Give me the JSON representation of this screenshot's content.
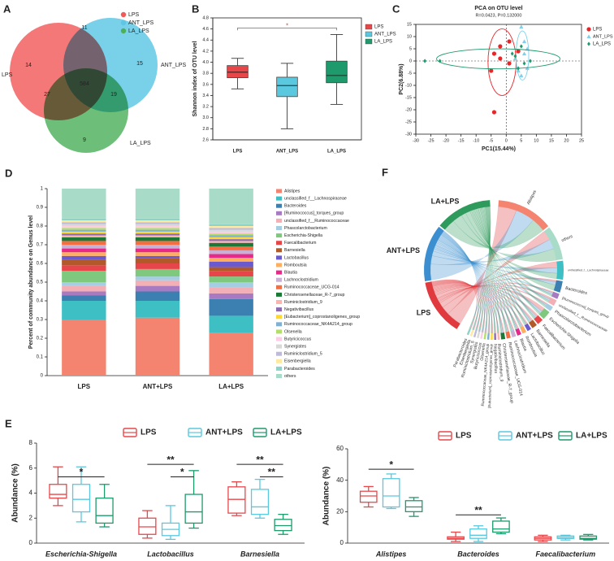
{
  "chart_data": [
    {
      "type": "venn",
      "panel": "A",
      "sets": [
        {
          "name": "LPS",
          "color": "#f25a5a"
        },
        {
          "name": "ANT_LPS",
          "color": "#5cc6e4"
        },
        {
          "name": "LA_LPS",
          "color": "#4cb05a"
        }
      ],
      "regions": [
        {
          "sets": [
            0
          ],
          "value": 14
        },
        {
          "sets": [
            1
          ],
          "value": 15
        },
        {
          "sets": [
            0,
            1
          ],
          "value": 11
        },
        {
          "sets": [
            0,
            1,
            2
          ],
          "value": 584
        },
        {
          "sets": [
            0,
            2
          ],
          "value": 27
        },
        {
          "sets": [
            1,
            2
          ],
          "value": 19
        },
        {
          "sets": [
            2
          ],
          "value": 9
        }
      ]
    },
    {
      "type": "box",
      "panel": "B",
      "ylabel": "Shannon index of OTU level",
      "filled": true,
      "categories": [
        "LPS",
        "ANT_LPS",
        "LA_LPS"
      ],
      "colors": [
        "#e8474a",
        "#5ac8de",
        "#1e9a6c"
      ],
      "boxes": [
        {
          "min": 3.52,
          "q1": 3.72,
          "median": 3.82,
          "q3": 3.94,
          "max": 4.07
        },
        {
          "min": 2.8,
          "q1": 3.38,
          "median": 3.58,
          "q3": 3.73,
          "max": 3.98
        },
        {
          "min": 3.24,
          "q1": 3.63,
          "median": 3.76,
          "q3": 4.02,
          "max": 4.5
        }
      ],
      "ylim": [
        2.6,
        4.8
      ],
      "yticks": [
        2.6,
        2.8,
        {
          "value": 3,
          "label": "3.0"
        },
        3.2,
        3.4,
        3.6,
        3.8,
        {
          "value": 4,
          "label": "4.0"
        },
        4.2,
        4.4,
        4.6,
        4.8
      ],
      "annotations": [
        {
          "label": "*",
          "y": 4.62,
          "between": [
            0,
            2
          ]
        }
      ]
    },
    {
      "type": "scatter",
      "panel": "C",
      "title": "PCA on OTU level",
      "subtitle": "R=0.0423, P=0.132000",
      "xlabel": "PC1(15.44%)",
      "ylabel": "PC2(6.88%)",
      "xlim": [
        -30,
        25
      ],
      "xticks": [
        -30,
        -25,
        -20,
        -15,
        -10,
        -5,
        0,
        5,
        10,
        15,
        20,
        25
      ],
      "ylim": [
        -30,
        15
      ],
      "yticks": [
        -30,
        -25,
        -20,
        -15,
        -10,
        -5,
        0,
        5,
        10,
        15
      ],
      "series": [
        {
          "name": "LPS",
          "color": "#e8262a",
          "marker": "circle",
          "x": [
            -4,
            -2,
            1,
            -2,
            -5,
            -4,
            4,
            1
          ],
          "y": [
            3,
            6,
            8,
            1,
            -4,
            -21,
            4,
            -1
          ]
        },
        {
          "name": "ANT_LPS",
          "color": "#7fd0e8",
          "marker": "triangle",
          "x": [
            5,
            6,
            7,
            4,
            5,
            7,
            3,
            6
          ],
          "y": [
            14,
            3,
            5,
            -4,
            -6,
            -3,
            1,
            8
          ]
        },
        {
          "name": "LA_LPS",
          "color": "#1e9a6c",
          "marker": "diamond",
          "x": [
            -27,
            -22,
            3,
            5,
            6,
            8,
            4,
            2
          ],
          "y": [
            0,
            0,
            2,
            6,
            -1,
            0,
            -3,
            3
          ]
        }
      ]
    },
    {
      "type": "stacked_bar",
      "panel": "D",
      "ylabel": "Percent of community abundance on Genus level",
      "categories": [
        "LPS",
        "ANT+LPS",
        "LA+LPS"
      ],
      "ylim": [
        0,
        1
      ],
      "yticks": [
        0,
        0.1,
        0.2,
        0.3,
        0.4,
        0.5,
        0.6,
        0.7,
        0.8,
        0.9,
        1
      ],
      "series": [
        {
          "name": "Alistipes",
          "color": "#f4846f",
          "values": [
            0.3,
            0.31,
            0.23
          ]
        },
        {
          "name": "unclassified_f__Lachnospiraceae",
          "color": "#3ebfc4",
          "values": [
            0.1,
            0.09,
            0.09
          ]
        },
        {
          "name": "Bacteroides",
          "color": "#3c7fb1",
          "values": [
            0.03,
            0.05,
            0.09
          ]
        },
        {
          "name": "[Ruminococcus]_torques_group",
          "color": "#a77ac1",
          "values": [
            0.02,
            0.03,
            0.03
          ]
        },
        {
          "name": "unclassified_f__Ruminococcaceae",
          "color": "#f2b0b6",
          "values": [
            0.03,
            0.03,
            0.03
          ]
        },
        {
          "name": "Phascolarctobacterium",
          "color": "#a6cee3",
          "values": [
            0.02,
            0.02,
            0.03
          ]
        },
        {
          "name": "Escherichia-Shigella",
          "color": "#7fc97f",
          "values": [
            0.06,
            0.04,
            0.03
          ]
        },
        {
          "name": "Faecalibacterium",
          "color": "#e6454a",
          "values": [
            0.03,
            0.03,
            0.03
          ]
        },
        {
          "name": "Barnesiella",
          "color": "#b15928",
          "values": [
            0.03,
            0.03,
            0.02
          ]
        },
        {
          "name": "Lactobacillus",
          "color": "#6a5acd",
          "values": [
            0.02,
            0.01,
            0.03
          ]
        },
        {
          "name": "Romboutsia",
          "color": "#fdae61",
          "values": [
            0.02,
            0.02,
            0.02
          ]
        },
        {
          "name": "Blautia",
          "color": "#e7298a",
          "values": [
            0.02,
            0.02,
            0.02
          ]
        },
        {
          "name": "Lachnoclostridium",
          "color": "#c9b1d6",
          "values": [
            0.02,
            0.02,
            0.02
          ]
        },
        {
          "name": "Ruminococcaceae_UCG-014",
          "color": "#f46d43",
          "values": [
            0.02,
            0.02,
            0.02
          ]
        },
        {
          "name": "Christensenellaceae_R-7_group",
          "color": "#1b7837",
          "values": [
            0.02,
            0.02,
            0.02
          ]
        },
        {
          "name": "Ruminiclostridium_9",
          "color": "#fbb4ae",
          "values": [
            0.01,
            0.01,
            0.01
          ]
        },
        {
          "name": "Negativibacillus",
          "color": "#8c6bb1",
          "values": [
            0.01,
            0.01,
            0.01
          ]
        },
        {
          "name": "[Eubacterium]_coprostanoligenes_group",
          "color": "#ffd92f",
          "values": [
            0.01,
            0.01,
            0.01
          ]
        },
        {
          "name": "Ruminococcaceae_NK4A214_group",
          "color": "#80b1d3",
          "values": [
            0.01,
            0.01,
            0.01
          ]
        },
        {
          "name": "Olsenella",
          "color": "#b3de69",
          "values": [
            0.01,
            0.01,
            0.01
          ]
        },
        {
          "name": "Butyricicoccus",
          "color": "#fccde5",
          "values": [
            0.01,
            0.01,
            0.01
          ]
        },
        {
          "name": "Synergistes",
          "color": "#d9d9d9",
          "values": [
            0.01,
            0.01,
            0.01
          ]
        },
        {
          "name": "Ruminiclostridium_5",
          "color": "#bebada",
          "values": [
            0.01,
            0.01,
            0.01
          ]
        },
        {
          "name": "Eisenbergiella",
          "color": "#ffe9a0",
          "values": [
            0.01,
            0.01,
            0.01
          ]
        },
        {
          "name": "Parabacteroides",
          "color": "#8dd3c7",
          "values": [
            0.01,
            0.01,
            0.01
          ]
        },
        {
          "name": "others",
          "color": "#a8dcc8",
          "values": [
            0.16,
            0.16,
            0.19
          ]
        }
      ]
    },
    {
      "type": "chord",
      "panel": "F",
      "groups": [
        "LPS",
        "ANT+LPS",
        "LA+LPS"
      ],
      "group_colors": [
        "#e03a3e",
        "#3b8fd0",
        "#2e9a5c"
      ]
    },
    {
      "type": "box",
      "panel": "E",
      "ylabel": "Abundance (%)",
      "filled": false,
      "categories": [
        "Escherichia-Shigella",
        "Lactobacillus",
        "Barnesiella"
      ],
      "ylim": [
        0,
        8
      ],
      "yticks": [
        0,
        2,
        4,
        6,
        8
      ],
      "series": [
        {
          "name": "LPS",
          "color": "#e8474a",
          "boxes": [
            {
              "min": 3,
              "q1": 3.6,
              "median": 3.9,
              "q3": 4.7,
              "max": 6.1
            },
            {
              "min": 0.4,
              "q1": 0.7,
              "median": 1.3,
              "q3": 2,
              "max": 2.6
            },
            {
              "min": 2.2,
              "q1": 2.4,
              "median": 3.5,
              "q3": 4.5,
              "max": 4.9
            }
          ]
        },
        {
          "name": "ANT+LPS",
          "color": "#5ac8de",
          "boxes": [
            {
              "min": 1.7,
              "q1": 2.5,
              "median": 3.5,
              "q3": 4.7,
              "max": 6.1
            },
            {
              "min": 0.3,
              "q1": 0.6,
              "median": 1.1,
              "q3": 1.6,
              "max": 3
            },
            {
              "min": 2,
              "q1": 2.3,
              "median": 2.9,
              "q3": 4.3,
              "max": 5.1
            }
          ]
        },
        {
          "name": "LA+LPS",
          "color": "#1e9a6c",
          "boxes": [
            {
              "min": 1.3,
              "q1": 1.6,
              "median": 2.2,
              "q3": 3.6,
              "max": 4.7
            },
            {
              "min": 1.2,
              "q1": 1.6,
              "median": 2.5,
              "q3": 3.9,
              "max": 5.8
            },
            {
              "min": 0.7,
              "q1": 1,
              "median": 1.4,
              "q3": 1.9,
              "max": 2.3
            }
          ]
        }
      ],
      "annotations": [
        {
          "label": "*",
          "y": 5.3,
          "category": 0,
          "between": [
            0,
            2
          ]
        },
        {
          "label": "**",
          "y": 6.3,
          "category": 1,
          "between": [
            0,
            2
          ]
        },
        {
          "label": "*",
          "y": 5.3,
          "category": 1,
          "between": [
            1,
            2
          ]
        },
        {
          "label": "**",
          "y": 6.3,
          "category": 2,
          "between": [
            0,
            2
          ]
        },
        {
          "label": "**",
          "y": 5.3,
          "category": 2,
          "between": [
            1,
            2
          ]
        }
      ]
    },
    {
      "type": "box",
      "ylabel": "Abundance (%)",
      "filled": false,
      "categories": [
        "Alistipes",
        "Bacteroides",
        "Faecalibacterium"
      ],
      "ylim": [
        0,
        60
      ],
      "yticks": [
        0,
        20,
        40,
        60
      ],
      "series": [
        {
          "name": "LPS",
          "color": "#e8474a",
          "boxes": [
            {
              "min": 23,
              "q1": 26,
              "median": 30,
              "q3": 33,
              "max": 36
            },
            {
              "min": 1,
              "q1": 2.5,
              "median": 3,
              "q3": 4,
              "max": 7
            },
            {
              "min": 1,
              "q1": 2,
              "median": 3,
              "q3": 4,
              "max": 5
            }
          ]
        },
        {
          "name": "ANT+LPS",
          "color": "#5ac8de",
          "boxes": [
            {
              "min": 22,
              "q1": 23,
              "median": 30,
              "q3": 41,
              "max": 44
            },
            {
              "min": 1,
              "q1": 3,
              "median": 5,
              "q3": 9,
              "max": 11
            },
            {
              "min": 2,
              "q1": 3,
              "median": 3.5,
              "q3": 4.5,
              "max": 5
            }
          ]
        },
        {
          "name": "LA+LPS",
          "color": "#1e9a6c",
          "boxes": [
            {
              "min": 17,
              "q1": 20,
              "median": 23,
              "q3": 27,
              "max": 29
            },
            {
              "min": 6,
              "q1": 7,
              "median": 9,
              "q3": 14,
              "max": 16
            },
            {
              "min": 2,
              "q1": 2.5,
              "median": 3,
              "q3": 4.5,
              "max": 5.5
            }
          ]
        }
      ],
      "annotations": [
        {
          "label": "*",
          "y": 47,
          "category": 0,
          "between": [
            0,
            2
          ]
        },
        {
          "label": "**",
          "y": 18,
          "category": 1,
          "between": [
            0,
            2
          ]
        }
      ]
    }
  ]
}
